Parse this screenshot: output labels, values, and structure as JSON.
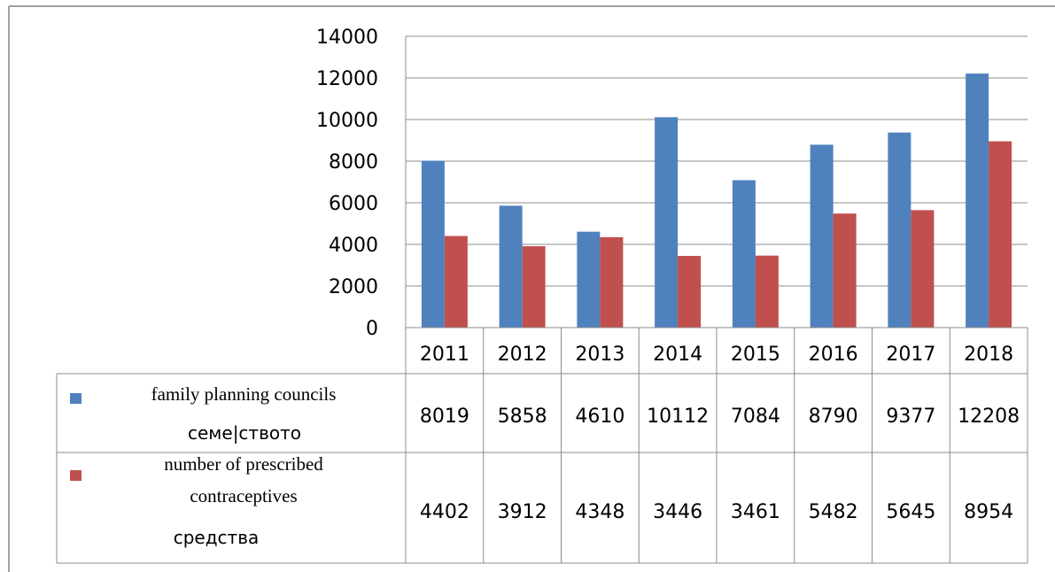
{
  "chart_data": {
    "type": "bar",
    "categories": [
      "2011",
      "2012",
      "2013",
      "2014",
      "2015",
      "2016",
      "2017",
      "2018"
    ],
    "series": [
      {
        "name": "family planning councils",
        "color": "#4F81BD",
        "values": [
          8019,
          5858,
          4610,
          10112,
          7084,
          8790,
          9377,
          12208
        ]
      },
      {
        "name": "number of prescribed contraceptives",
        "name_lines": [
          "number of prescribed",
          "contraceptives"
        ],
        "color": "#C0504D",
        "values": [
          4402,
          3912,
          4348,
          3446,
          3461,
          5482,
          5645,
          8954
        ]
      }
    ],
    "y_ticks": [
      "0",
      "2000",
      "4000",
      "6000",
      "8000",
      "10000",
      "12000",
      "14000"
    ],
    "ylim": [
      0,
      14000
    ],
    "grid": true,
    "legend": "data-table-left",
    "data_table": true,
    "overlay_text": [
      "семе|ството",
      "средства"
    ],
    "title": "",
    "xlabel": "",
    "ylabel": ""
  }
}
